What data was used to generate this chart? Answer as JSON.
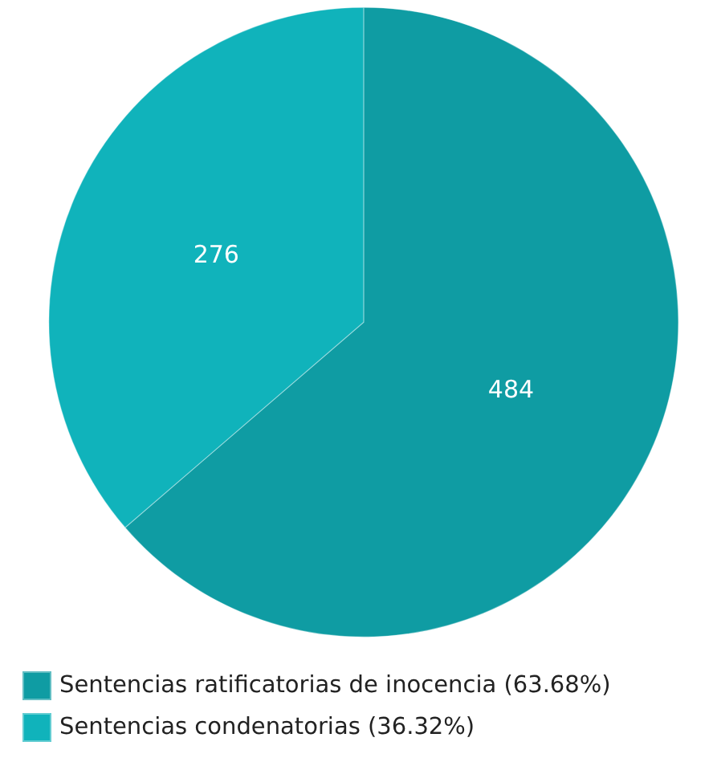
{
  "chart_data": {
    "type": "pie",
    "categories": [
      "Sentencias ratificatorias de inocencia (63.68%)",
      "Sentencias condenatorias (36.32%)"
    ],
    "values": [
      484,
      276
    ],
    "colors": [
      "#0f9ca3",
      "#10b3bb"
    ],
    "data_labels": true,
    "legend": "bottom"
  }
}
